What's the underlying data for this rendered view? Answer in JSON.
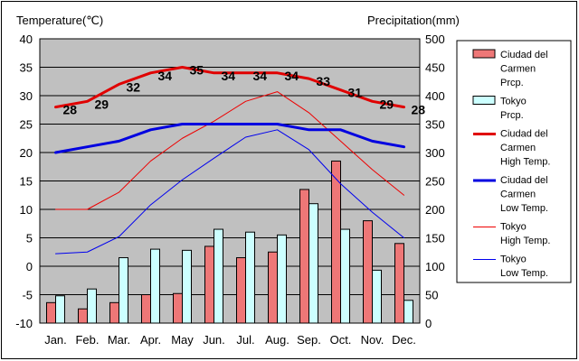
{
  "chart_data": {
    "type": "bar",
    "left_axis_title": "Temperature(℃)",
    "right_axis_title": "Precipitation(mm)",
    "categories": [
      "Jan.",
      "Feb.",
      "Mar.",
      "Apr.",
      "May",
      "Jun.",
      "Jul.",
      "Aug.",
      "Sep.",
      "Oct.",
      "Nov.",
      "Dec."
    ],
    "left_axis": {
      "min": -10,
      "max": 40,
      "ticks": [
        "40",
        "35",
        "30",
        "25",
        "20",
        "15",
        "10",
        "5",
        "0",
        "-5",
        "-10"
      ]
    },
    "right_axis": {
      "min": 0,
      "max": 500,
      "ticks": [
        "500",
        "450",
        "400",
        "350",
        "300",
        "250",
        "200",
        "150",
        "100",
        "50",
        "0"
      ]
    },
    "grid": true,
    "legend_position": "right",
    "bar_series": [
      {
        "name": "Ciudad del Carmen Prcp.",
        "legend_lines": [
          "Ciudad del",
          "Carmen",
          "Prcp."
        ],
        "color": "#ee7777",
        "values": [
          36,
          25,
          36,
          50,
          52,
          135,
          115,
          125,
          235,
          285,
          180,
          140
        ]
      },
      {
        "name": "Tokyo Prcp.",
        "legend_lines": [
          "Tokyo",
          "Prcp."
        ],
        "color": "#ccffff",
        "values": [
          48,
          60,
          115,
          130,
          128,
          165,
          160,
          155,
          210,
          165,
          93,
          40
        ]
      }
    ],
    "line_series": [
      {
        "name": "Ciudad del Carmen High Temp.",
        "legend_lines": [
          "Ciudad del",
          "Carmen",
          "High Temp."
        ],
        "color": "#e00000",
        "width": 3,
        "values": [
          28,
          29,
          32,
          34,
          35,
          34,
          34,
          34,
          33,
          31,
          29,
          28
        ],
        "labels": [
          "28",
          "29",
          "32",
          "34",
          "35",
          "34",
          "34",
          "34",
          "33",
          "31",
          "29",
          "28"
        ]
      },
      {
        "name": "Ciudad del Carmen Low Temp.",
        "legend_lines": [
          "Ciudad del",
          "Carmen",
          "Low Temp."
        ],
        "color": "#0000e0",
        "width": 3,
        "values": [
          20,
          21,
          22,
          24,
          25,
          25,
          25,
          25,
          24,
          24,
          22,
          21
        ]
      },
      {
        "name": "Tokyo High Temp.",
        "legend_lines": [
          "Tokyo",
          "High Temp."
        ],
        "color": "#ee0000",
        "width": 1,
        "values": [
          10,
          10,
          13,
          18.5,
          22.5,
          25.5,
          29,
          30.7,
          27,
          22,
          17,
          12.5
        ]
      },
      {
        "name": "Tokyo Low Temp.",
        "legend_lines": [
          "Tokyo",
          "Low Temp."
        ],
        "color": "#0000ee",
        "width": 1,
        "values": [
          2.2,
          2.5,
          5.2,
          10.8,
          15.2,
          19,
          22.7,
          24,
          20.5,
          14.5,
          9.5,
          5
        ]
      }
    ]
  }
}
